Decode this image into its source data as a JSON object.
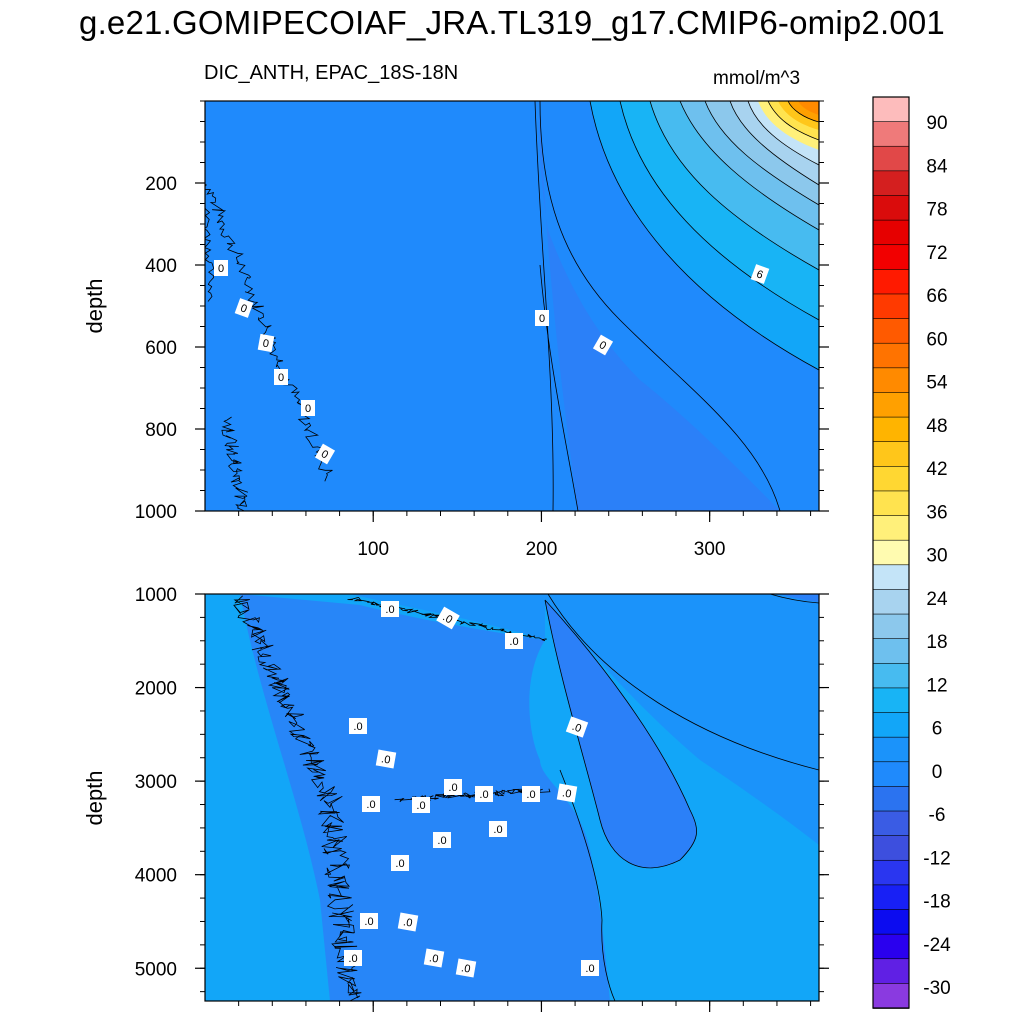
{
  "title": "g.e21.GOMIPECOIAF_JRA.TL319_g17.CMIP6-omip2.001",
  "subtitle_left": "DIC_ANTH, EPAC_18S-18N",
  "subtitle_right": "mmol/m^3",
  "chart_data": [
    {
      "type": "heatmap",
      "panel": "upper",
      "variable": "DIC_ANTH",
      "region": "EPAC_18S-18N",
      "units": "mmol/m^3",
      "ylabel": "depth",
      "xlabel": "",
      "xlim": [
        0,
        365
      ],
      "ylim": [
        1000,
        0
      ],
      "y_reversed": true,
      "xticks": [
        100,
        200,
        300
      ],
      "yticks": [
        200,
        400,
        600,
        800,
        1000
      ],
      "contour_labels": [
        "0",
        "0",
        "0",
        "0",
        "0",
        "0",
        "0",
        "0",
        "6"
      ],
      "fields": [
        {
          "region": "background",
          "value": 0
        },
        {
          "region": "lower-right wedge",
          "value": -3
        },
        {
          "region": "upper-right corner",
          "value": 40,
          "max": 55
        }
      ]
    },
    {
      "type": "heatmap",
      "panel": "lower",
      "variable": "DIC_ANTH",
      "region": "EPAC_18S-18N",
      "units": "mmol/m^3",
      "ylabel": "depth",
      "xlabel": "",
      "xlim": [
        0,
        365
      ],
      "ylim": [
        5350,
        1000
      ],
      "y_reversed": true,
      "yticks": [
        1000,
        2000,
        3000,
        4000,
        5000
      ],
      "contour_labels": [
        ".0",
        ".0",
        ".0",
        ".0",
        ".0",
        ".0",
        ".0",
        ".0",
        ".0",
        ".0",
        ".0",
        ".0",
        ".0",
        ".0",
        ".0",
        ".0",
        ".0",
        ".0",
        ".0",
        ".0",
        ".0"
      ],
      "fields": [
        {
          "region": "background",
          "value": 1
        },
        {
          "region": "central deep wedge",
          "value": -1
        },
        {
          "region": "right tongue",
          "value": -1
        }
      ]
    }
  ],
  "colorbar": {
    "labels": [
      "90",
      "84",
      "78",
      "72",
      "66",
      "60",
      "54",
      "48",
      "42",
      "36",
      "30",
      "24",
      "18",
      "12",
      "6",
      "0",
      "-6",
      "-12",
      "-18",
      "-24",
      "-30"
    ],
    "colors": [
      "#fdbcbc",
      "#ef7a7a",
      "#e14848",
      "#d41f1f",
      "#da0c0c",
      "#e60000",
      "#f20000",
      "#ff1a00",
      "#ff3a00",
      "#ff5a00",
      "#ff7300",
      "#ff8a00",
      "#ffa000",
      "#ffb400",
      "#ffc61a",
      "#ffd732",
      "#ffe34f",
      "#fff07a",
      "#fffbb0",
      "#c4e4f8",
      "#a8d3ef",
      "#8cc8ec",
      "#6ec0ee",
      "#47bbf0",
      "#18b4f5",
      "#12a6f8",
      "#1b93fa",
      "#1f8afc",
      "#2b73f0",
      "#3a5ce4",
      "#3d4fde",
      "#2a36f0",
      "#1820f5",
      "#0c0cf0",
      "#2a00ee",
      "#6020e4",
      "#8a3ae0"
    ]
  }
}
